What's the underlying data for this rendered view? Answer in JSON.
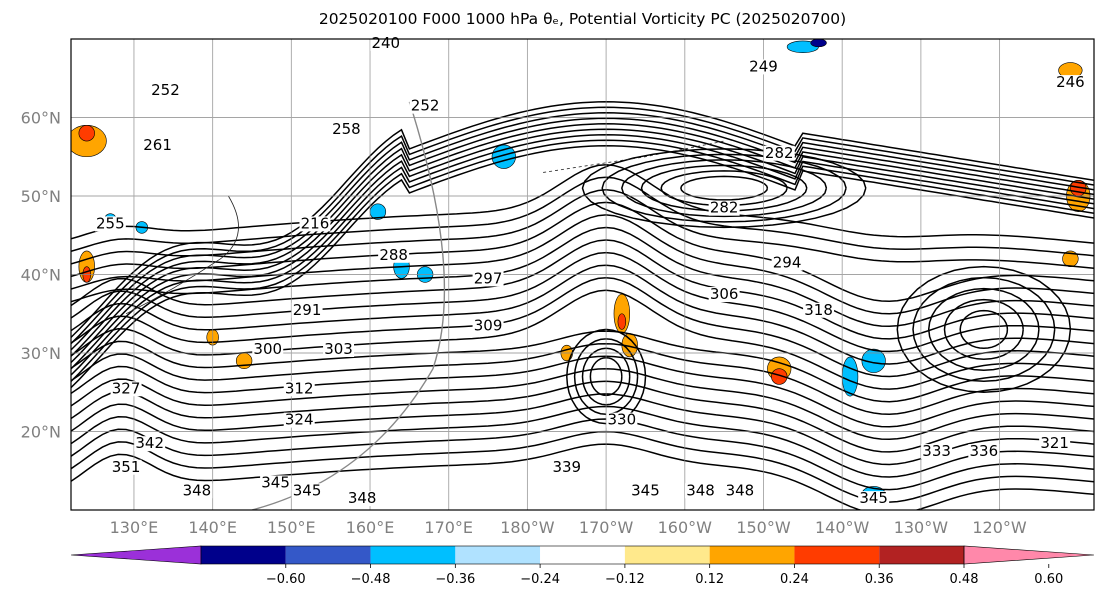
{
  "chart_data": {
    "type": "contour map",
    "title": "2025020100 F000 1000 hPa θₑ, Potential Vorticity PC (2025020700)",
    "projection": "cylindrical, Pacific-centered",
    "grid": true,
    "lat_ticks": [
      "20°N",
      "30°N",
      "40°N",
      "50°N",
      "60°N"
    ],
    "lon_ticks": [
      "130°E",
      "140°E",
      "150°E",
      "160°E",
      "170°E",
      "180°W",
      "170°W",
      "160°W",
      "150°W",
      "140°W",
      "130°W",
      "120°W"
    ],
    "lon_range": [
      122,
      252
    ],
    "lat_range": [
      10,
      70
    ],
    "contour_field": "1000 hPa θe (K)",
    "contour_labels": [
      {
        "text": "240",
        "lon": 162,
        "lat": 69
      },
      {
        "text": "249",
        "lon": 210,
        "lat": 66
      },
      {
        "text": "246",
        "lon": 249,
        "lat": 64
      },
      {
        "text": "252",
        "lon": 134,
        "lat": 63
      },
      {
        "text": "252",
        "lon": 167,
        "lat": 61
      },
      {
        "text": "258",
        "lon": 157,
        "lat": 58
      },
      {
        "text": "261",
        "lon": 133,
        "lat": 56
      },
      {
        "text": "255",
        "lon": 127,
        "lat": 46
      },
      {
        "text": "216",
        "lon": 153,
        "lat": 46
      },
      {
        "text": "282",
        "lon": 212,
        "lat": 55
      },
      {
        "text": "282",
        "lon": 205,
        "lat": 48
      },
      {
        "text": "294",
        "lon": 213,
        "lat": 41
      },
      {
        "text": "306",
        "lon": 205,
        "lat": 37
      },
      {
        "text": "318",
        "lon": 217,
        "lat": 35
      },
      {
        "text": "288",
        "lon": 163,
        "lat": 42
      },
      {
        "text": "291",
        "lon": 152,
        "lat": 35
      },
      {
        "text": "297",
        "lon": 175,
        "lat": 39
      },
      {
        "text": "309",
        "lon": 175,
        "lat": 33
      },
      {
        "text": "300",
        "lon": 147,
        "lat": 30
      },
      {
        "text": "303",
        "lon": 156,
        "lat": 30
      },
      {
        "text": "312",
        "lon": 151,
        "lat": 25
      },
      {
        "text": "324",
        "lon": 151,
        "lat": 21
      },
      {
        "text": "327",
        "lon": 129,
        "lat": 25
      },
      {
        "text": "342",
        "lon": 132,
        "lat": 18
      },
      {
        "text": "351",
        "lon": 129,
        "lat": 15
      },
      {
        "text": "348",
        "lon": 138,
        "lat": 12
      },
      {
        "text": "345",
        "lon": 148,
        "lat": 13
      },
      {
        "text": "345",
        "lon": 152,
        "lat": 12
      },
      {
        "text": "348",
        "lon": 159,
        "lat": 11
      },
      {
        "text": "339",
        "lon": 185,
        "lat": 15
      },
      {
        "text": "330",
        "lon": 192,
        "lat": 21
      },
      {
        "text": "345",
        "lon": 195,
        "lat": 12
      },
      {
        "text": "348",
        "lon": 202,
        "lat": 12
      },
      {
        "text": "348",
        "lon": 207,
        "lat": 12
      },
      {
        "text": "333",
        "lon": 232,
        "lat": 17
      },
      {
        "text": "336",
        "lon": 238,
        "lat": 17
      },
      {
        "text": "321",
        "lon": 247,
        "lat": 18
      },
      {
        "text": "345",
        "lon": 224,
        "lat": 11
      }
    ],
    "colorbar": {
      "ticks": [
        "−0.60",
        "−0.48",
        "−0.36",
        "−0.24",
        "−0.12",
        "0.12",
        "0.24",
        "0.36",
        "0.48",
        "0.60"
      ],
      "colors": [
        "#9b30d9",
        "#00008b",
        "#3458c8",
        "#00bfff",
        "#b0e2ff",
        "#ffffff",
        "#ffe98c",
        "#ffa500",
        "#ff3c00",
        "#b22222",
        "#ff88aa"
      ],
      "extend": "both"
    },
    "shaded_field": "Potential Vorticity PC",
    "shaded_regions": [
      {
        "color": "#00bfff",
        "lon": 177,
        "lat": 55,
        "w": 3,
        "h": 3
      },
      {
        "color": "#00bfff",
        "lon": 161,
        "lat": 48,
        "w": 2,
        "h": 2
      },
      {
        "color": "#00bfff",
        "lon": 164,
        "lat": 41,
        "w": 2,
        "h": 3
      },
      {
        "color": "#00bfff",
        "lon": 167,
        "lat": 40,
        "w": 2,
        "h": 2
      },
      {
        "color": "#00bfff",
        "lon": 221,
        "lat": 27,
        "w": 2,
        "h": 5
      },
      {
        "color": "#00bfff",
        "lon": 224,
        "lat": 29,
        "w": 3,
        "h": 3
      },
      {
        "color": "#00bfff",
        "lon": 224,
        "lat": 12,
        "w": 3,
        "h": 2
      },
      {
        "color": "#00bfff",
        "lon": 127,
        "lat": 47,
        "w": 1.5,
        "h": 1.5
      },
      {
        "color": "#00bfff",
        "lon": 131,
        "lat": 46,
        "w": 1.5,
        "h": 1.5
      },
      {
        "color": "#00bfff",
        "lon": 215,
        "lat": 69,
        "w": 4,
        "h": 1.5
      },
      {
        "color": "#00008b",
        "lon": 217,
        "lat": 69.5,
        "w": 2,
        "h": 1
      },
      {
        "color": "#ffa500",
        "lon": 192,
        "lat": 35,
        "w": 2,
        "h": 5
      },
      {
        "color": "#ffa500",
        "lon": 193,
        "lat": 31,
        "w": 2,
        "h": 3
      },
      {
        "color": "#ff3c00",
        "lon": 192,
        "lat": 34,
        "w": 1,
        "h": 2
      },
      {
        "color": "#ffa500",
        "lon": 212,
        "lat": 28,
        "w": 3,
        "h": 3
      },
      {
        "color": "#ff3c00",
        "lon": 212,
        "lat": 27,
        "w": 2,
        "h": 2
      },
      {
        "color": "#ffa500",
        "lon": 185,
        "lat": 30,
        "w": 1.5,
        "h": 2
      },
      {
        "color": "#ffa500",
        "lon": 124,
        "lat": 57,
        "w": 5,
        "h": 4
      },
      {
        "color": "#ff3c00",
        "lon": 124,
        "lat": 58,
        "w": 2,
        "h": 2
      },
      {
        "color": "#ffa500",
        "lon": 124,
        "lat": 41,
        "w": 2,
        "h": 4
      },
      {
        "color": "#ff3c00",
        "lon": 124,
        "lat": 40,
        "w": 1,
        "h": 2
      },
      {
        "color": "#ffa500",
        "lon": 250,
        "lat": 50,
        "w": 3,
        "h": 4
      },
      {
        "color": "#ff3c00",
        "lon": 250,
        "lat": 51,
        "w": 2,
        "h": 2
      },
      {
        "color": "#ffa500",
        "lon": 249,
        "lat": 66,
        "w": 3,
        "h": 2
      },
      {
        "color": "#ffa500",
        "lon": 249,
        "lat": 42,
        "w": 2,
        "h": 2
      },
      {
        "color": "#ffa500",
        "lon": 140,
        "lat": 32,
        "w": 1.5,
        "h": 2
      },
      {
        "color": "#ffa500",
        "lon": 144,
        "lat": 29,
        "w": 2,
        "h": 2
      }
    ]
  }
}
